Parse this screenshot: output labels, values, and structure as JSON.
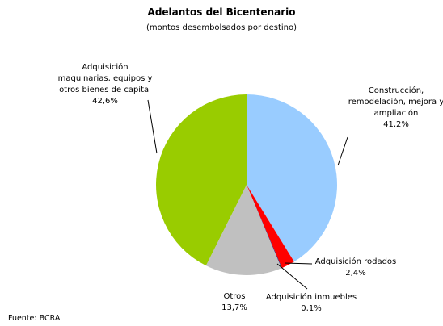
{
  "chart_data": {
    "type": "pie",
    "title": "Adelantos del Bicentenario",
    "subtitle": "(montos desembolsados por destino)",
    "categories": [
      "Construcción,\nremodelación, mejora y\nampliación",
      "Adquisición rodados",
      "Adquisición inmuebles",
      "Otros",
      "Adquisición\nmaquinarias, equipos y\notros bienes de capital"
    ],
    "values": [
      41.2,
      2.4,
      0.1,
      13.7,
      42.6
    ],
    "value_labels": [
      "41,2%",
      "2,4%",
      "0,1%",
      "13,7%",
      "42,6%"
    ],
    "colors": [
      "#99ccff",
      "#ff0000",
      "#1f1f7a",
      "#c0c0c0",
      "#99cc00"
    ],
    "source": "Fuente: BCRA"
  }
}
